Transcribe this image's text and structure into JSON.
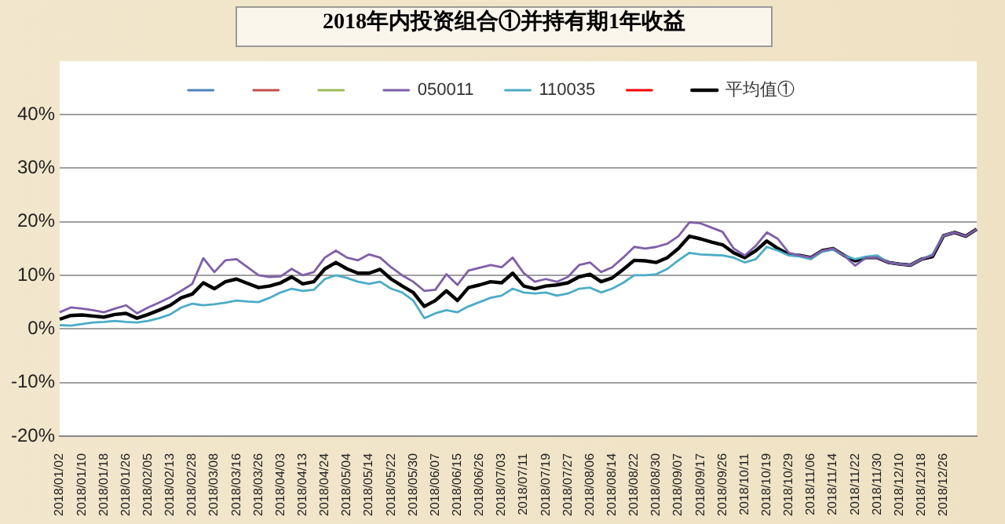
{
  "chart_data": {
    "type": "line",
    "title": "2018年内投资组合①并持有期1年收益",
    "categories": [
      "2018/01/02",
      null,
      "2018/01/10",
      null,
      "2018/01/18",
      null,
      "2018/01/26",
      null,
      "2018/02/05",
      null,
      "2018/02/13",
      null,
      "2018/02/28",
      null,
      "2018/03/08",
      null,
      "2018/03/16",
      null,
      "2018/03/26",
      null,
      "2018/04/03",
      null,
      "2018/04/13",
      null,
      "2018/04/24",
      null,
      "2018/05/04",
      null,
      "2018/05/14",
      null,
      "2018/05/22",
      null,
      "2018/05/30",
      null,
      "2018/06/07",
      null,
      "2018/06/15",
      null,
      "2018/06/26",
      null,
      "2018/07/03",
      null,
      "2018/07/11",
      null,
      "2018/07/19",
      null,
      "2018/07/27",
      null,
      "2018/08/06",
      null,
      "2018/08/14",
      null,
      "2018/08/22",
      null,
      "2018/08/30",
      null,
      "2018/09/07",
      null,
      "2018/09/17",
      null,
      "2018/09/26",
      null,
      "2018/10/11",
      null,
      "2018/10/19",
      null,
      "2018/10/29",
      null,
      "2018/11/06",
      null,
      "2018/11/14",
      null,
      "2018/11/22",
      null,
      "2018/11/30",
      null,
      "2018/12/10",
      null,
      "2018/12/18",
      null,
      "2018/12/26",
      null,
      null,
      null
    ],
    "series": [
      {
        "color": "#4f81bd",
        "values": [
          null,
          null,
          null,
          null,
          null,
          null,
          null,
          null,
          null,
          null,
          null,
          null,
          null,
          null,
          null,
          null,
          null,
          null,
          null,
          null,
          null,
          null,
          null,
          null,
          null,
          null,
          null,
          null,
          null,
          null,
          null,
          null,
          null,
          null,
          null,
          null,
          null,
          null,
          null,
          null,
          null,
          null,
          null,
          null,
          null,
          null,
          null,
          null,
          null,
          null,
          null,
          null,
          null,
          null,
          null,
          null,
          null,
          null,
          null,
          null,
          null,
          null,
          null,
          null,
          null,
          null,
          null,
          null,
          null,
          null,
          null,
          null,
          null,
          null,
          null,
          null,
          null,
          null,
          null,
          null,
          null,
          null,
          null,
          null
        ]
      },
      {
        "color": "#c0504d",
        "values": [
          null,
          null,
          null,
          null,
          null,
          null,
          null,
          null,
          null,
          null,
          null,
          null,
          null,
          null,
          null,
          null,
          null,
          null,
          null,
          null,
          null,
          null,
          null,
          null,
          null,
          null,
          null,
          null,
          null,
          null,
          null,
          null,
          null,
          null,
          null,
          null,
          null,
          null,
          null,
          null,
          null,
          null,
          null,
          null,
          null,
          null,
          null,
          null,
          null,
          null,
          null,
          null,
          null,
          null,
          null,
          null,
          null,
          null,
          null,
          null,
          null,
          null,
          null,
          null,
          null,
          null,
          null,
          null,
          null,
          null,
          null,
          null,
          null,
          null,
          null,
          null,
          null,
          null,
          null,
          null,
          null,
          null,
          null,
          null
        ]
      },
      {
        "color": "#9bbb59",
        "values": [
          null,
          null,
          null,
          null,
          null,
          null,
          null,
          null,
          null,
          null,
          null,
          null,
          null,
          null,
          null,
          null,
          null,
          null,
          null,
          null,
          null,
          null,
          null,
          null,
          null,
          null,
          null,
          null,
          null,
          null,
          null,
          null,
          null,
          null,
          null,
          null,
          null,
          null,
          null,
          null,
          null,
          null,
          null,
          null,
          null,
          null,
          null,
          null,
          null,
          null,
          null,
          null,
          null,
          null,
          null,
          null,
          null,
          null,
          null,
          null,
          null,
          null,
          null,
          null,
          null,
          null,
          null,
          null,
          null,
          null,
          null,
          null,
          null,
          null,
          null,
          null,
          null,
          null,
          null,
          null,
          null,
          null,
          null,
          null
        ]
      },
      {
        "name": "050011",
        "color": "#7f5fa8",
        "values": [
          3.1,
          4.0,
          3.8,
          3.5,
          3.1,
          3.8,
          4.4,
          2.9,
          4.0,
          4.9,
          5.9,
          7.1,
          8.4,
          13.2,
          10.6,
          12.8,
          13.0,
          11.5,
          10.0,
          9.7,
          9.8,
          11.2,
          10.0,
          10.6,
          13.3,
          14.6,
          13.3,
          12.8,
          13.9,
          13.3,
          11.5,
          10.0,
          8.8,
          7.1,
          7.3,
          10.2,
          8.2,
          10.9,
          11.4,
          11.9,
          11.5,
          13.3,
          10.4,
          8.8,
          9.3,
          8.8,
          9.7,
          11.9,
          12.4,
          10.6,
          11.5,
          13.3,
          15.3,
          15.0,
          15.3,
          15.9,
          17.3,
          19.9,
          19.7,
          18.9,
          18.1,
          15.0,
          13.7,
          15.5,
          18.0,
          16.8,
          14.2,
          13.7,
          13.3,
          14.6,
          15.0,
          13.7,
          11.8,
          13.3,
          13.3,
          12.4,
          12.1,
          11.9,
          13.0,
          13.7,
          17.4,
          18.0,
          17.3,
          18.6
        ]
      },
      {
        "name": "110035",
        "color": "#4bacc6",
        "values": [
          0.7,
          0.6,
          0.9,
          1.2,
          1.3,
          1.5,
          1.3,
          1.2,
          1.5,
          2.0,
          2.7,
          4.0,
          4.7,
          4.4,
          4.6,
          4.9,
          5.3,
          5.1,
          5.0,
          5.8,
          6.8,
          7.5,
          7.1,
          7.3,
          9.3,
          10.0,
          9.5,
          8.8,
          8.4,
          8.8,
          7.5,
          6.8,
          5.3,
          2.0,
          2.9,
          3.5,
          3.1,
          4.2,
          5.0,
          5.8,
          6.2,
          7.5,
          6.8,
          6.6,
          6.8,
          6.2,
          6.6,
          7.5,
          7.7,
          6.8,
          7.5,
          8.6,
          10.0,
          10.0,
          10.2,
          11.2,
          12.8,
          14.2,
          13.9,
          13.8,
          13.7,
          13.3,
          12.4,
          13.0,
          15.3,
          14.6,
          13.7,
          13.5,
          13.0,
          14.4,
          14.8,
          13.7,
          13.0,
          13.5,
          13.7,
          12.4,
          12.1,
          11.9,
          13.0,
          13.9,
          17.4,
          18.0,
          null,
          null
        ]
      },
      {
        "color": "#ff0000",
        "values": [
          null,
          null,
          null,
          null,
          null,
          null,
          null,
          null,
          null,
          null,
          null,
          null,
          null,
          null,
          null,
          null,
          null,
          null,
          null,
          null,
          null,
          null,
          null,
          null,
          null,
          null,
          null,
          null,
          null,
          null,
          null,
          null,
          null,
          null,
          null,
          null,
          null,
          null,
          null,
          null,
          null,
          null,
          null,
          null,
          null,
          null,
          null,
          null,
          null,
          null,
          null,
          null,
          null,
          null,
          null,
          null,
          null,
          null,
          null,
          null,
          null,
          null,
          null,
          null,
          null,
          null,
          null,
          null,
          null,
          null,
          null,
          null,
          null,
          null,
          null,
          null,
          null,
          null,
          null,
          null,
          null,
          null,
          null,
          null
        ]
      },
      {
        "name": "平均值①",
        "color": "#000000",
        "values": [
          1.8,
          2.5,
          2.6,
          2.4,
          2.2,
          2.7,
          2.9,
          2.0,
          2.7,
          3.5,
          4.4,
          5.8,
          6.5,
          8.6,
          7.5,
          8.8,
          9.3,
          8.5,
          7.7,
          8.0,
          8.6,
          9.7,
          8.4,
          8.8,
          11.2,
          12.4,
          11.2,
          10.4,
          10.4,
          11.1,
          9.3,
          8.0,
          6.8,
          4.2,
          5.3,
          7.1,
          5.3,
          7.7,
          8.2,
          8.8,
          8.6,
          10.4,
          8.0,
          7.5,
          8.0,
          8.2,
          8.6,
          9.7,
          10.2,
          8.8,
          9.5,
          11.1,
          12.8,
          12.7,
          12.4,
          13.3,
          15.0,
          17.3,
          16.8,
          16.2,
          15.7,
          14.2,
          13.3,
          14.6,
          16.4,
          15.0,
          13.9,
          13.7,
          13.3,
          14.6,
          15.0,
          13.7,
          12.7,
          13.3,
          13.3,
          12.4,
          12.1,
          11.9,
          13.0,
          13.5,
          17.4,
          18.0,
          17.3,
          18.6
        ]
      }
    ],
    "ylim": [
      -20,
      40
    ],
    "yticks": [
      {
        "value": -20,
        "label": "-20%"
      },
      {
        "value": -10,
        "label": "-10%"
      },
      {
        "value": 0,
        "label": "0%"
      },
      {
        "value": 10,
        "label": "10%"
      },
      {
        "value": 20,
        "label": "20%"
      },
      {
        "value": 30,
        "label": "30%"
      },
      {
        "value": 40,
        "label": "40%"
      }
    ],
    "grid": "y",
    "legend": "top",
    "marker": "none",
    "line_style": "solid"
  }
}
